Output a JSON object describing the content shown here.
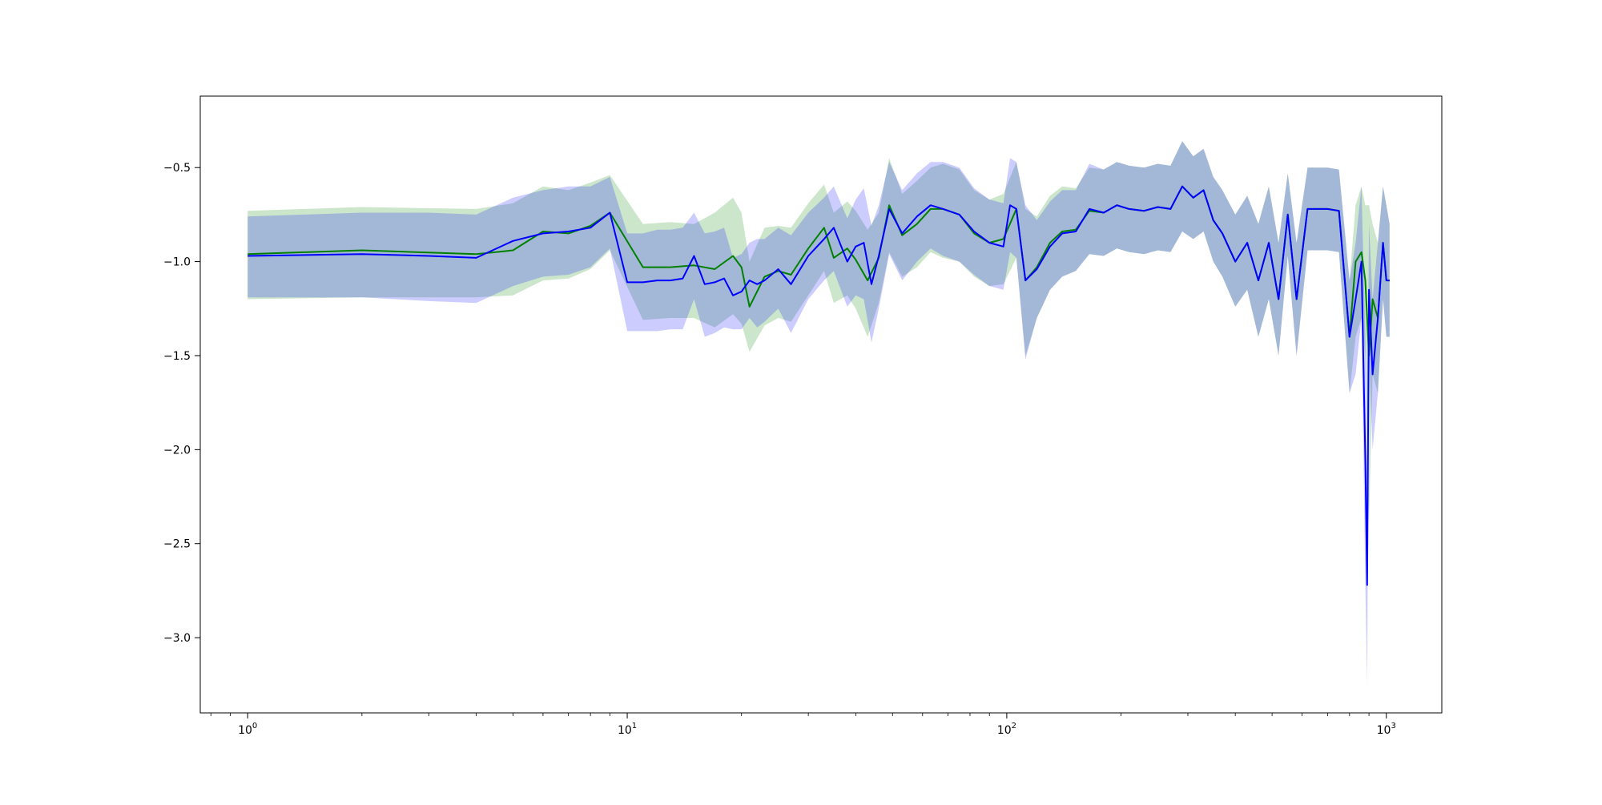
{
  "chart_data": {
    "type": "line",
    "title": "",
    "xlabel": "",
    "ylabel": "",
    "x_scale": "log",
    "xlim": [
      0.75,
      1400
    ],
    "ylim": [
      -3.4,
      -0.12
    ],
    "grid": false,
    "x_major_ticks": [
      {
        "value": 1,
        "base": "10",
        "exp": "0"
      },
      {
        "value": 10,
        "base": "10",
        "exp": "1"
      },
      {
        "value": 100,
        "base": "10",
        "exp": "2"
      },
      {
        "value": 1000,
        "base": "10",
        "exp": "3"
      }
    ],
    "y_ticks": [
      {
        "value": -0.5,
        "label": "−0.5"
      },
      {
        "value": -1.0,
        "label": "−1.0"
      },
      {
        "value": -1.5,
        "label": "−1.5"
      },
      {
        "value": -2.0,
        "label": "−2.0"
      },
      {
        "value": -2.5,
        "label": "−2.5"
      },
      {
        "value": -3.0,
        "label": "−3.0"
      }
    ],
    "series": [
      {
        "color": "#008000",
        "band_color": "#008000",
        "x": [
          1,
          2,
          4,
          5,
          6,
          7,
          8,
          9,
          11,
          13,
          15,
          17,
          19,
          20,
          21,
          23,
          25,
          27,
          30,
          33,
          35,
          38,
          40,
          43,
          46,
          49,
          53,
          58,
          63,
          68,
          75,
          82,
          90,
          98,
          106,
          112,
          120,
          130,
          140,
          152,
          165,
          180,
          195,
          210,
          230,
          250,
          270,
          290,
          310,
          330,
          350,
          370,
          400,
          430,
          460,
          490,
          520,
          550,
          580,
          620,
          660,
          700,
          750,
          800,
          830,
          860,
          880,
          900,
          920,
          950,
          980,
          1000,
          1020
        ],
        "y": [
          -0.96,
          -0.94,
          -0.96,
          -0.94,
          -0.84,
          -0.85,
          -0.81,
          -0.74,
          -1.03,
          -1.03,
          -1.02,
          -1.04,
          -0.97,
          -1.03,
          -1.24,
          -1.08,
          -1.05,
          -1.07,
          -0.93,
          -0.82,
          -0.98,
          -0.93,
          -0.99,
          -1.1,
          -0.98,
          -0.7,
          -0.86,
          -0.8,
          -0.72,
          -0.72,
          -0.75,
          -0.85,
          -0.9,
          -0.88,
          -0.72,
          -1.1,
          -1.03,
          -0.9,
          -0.84,
          -0.83,
          -0.73,
          -0.74,
          -0.7,
          -0.72,
          -0.73,
          -0.71,
          -0.72,
          -0.6,
          -0.66,
          -0.62,
          -0.78,
          -0.85,
          -1.0,
          -0.9,
          -1.1,
          -0.9,
          -1.2,
          -0.75,
          -1.2,
          -0.72,
          -0.72,
          -0.72,
          -0.73,
          -1.4,
          -1.0,
          -0.95,
          -1.1,
          -1.5,
          -1.2,
          -1.3,
          -0.9,
          -1.1,
          -1.1
        ],
        "lower": [
          -1.2,
          -1.19,
          -1.19,
          -1.18,
          -1.1,
          -1.09,
          -1.04,
          -0.94,
          -1.31,
          -1.3,
          -1.3,
          -1.35,
          -1.28,
          -1.33,
          -1.48,
          -1.34,
          -1.3,
          -1.32,
          -1.18,
          -1.05,
          -1.22,
          -1.18,
          -1.25,
          -1.4,
          -1.22,
          -0.95,
          -1.08,
          -1.03,
          -0.95,
          -0.98,
          -1.0,
          -1.08,
          -1.13,
          -1.12,
          -0.98,
          -1.5,
          -1.3,
          -1.15,
          -1.08,
          -1.05,
          -0.96,
          -0.97,
          -0.93,
          -0.95,
          -0.96,
          -0.94,
          -0.95,
          -0.84,
          -0.88,
          -0.84,
          -1.0,
          -1.08,
          -1.24,
          -1.15,
          -1.4,
          -1.2,
          -1.5,
          -0.97,
          -1.5,
          -0.94,
          -0.94,
          -0.94,
          -0.95,
          -1.7,
          -1.4,
          -1.3,
          -1.5,
          -2.4,
          -1.6,
          -1.7,
          -1.2,
          -1.4,
          -1.4
        ],
        "upper": [
          -0.73,
          -0.71,
          -0.72,
          -0.69,
          -0.6,
          -0.62,
          -0.58,
          -0.54,
          -0.8,
          -0.79,
          -0.8,
          -0.74,
          -0.66,
          -0.74,
          -1.0,
          -0.82,
          -0.81,
          -0.82,
          -0.69,
          -0.59,
          -0.74,
          -0.68,
          -0.73,
          -0.83,
          -0.74,
          -0.45,
          -0.64,
          -0.57,
          -0.5,
          -0.48,
          -0.51,
          -0.62,
          -0.67,
          -0.64,
          -0.47,
          -0.72,
          -0.76,
          -0.65,
          -0.6,
          -0.61,
          -0.5,
          -0.51,
          -0.47,
          -0.49,
          -0.5,
          -0.48,
          -0.49,
          -0.36,
          -0.44,
          -0.4,
          -0.55,
          -0.62,
          -0.75,
          -0.65,
          -0.8,
          -0.6,
          -0.9,
          -0.53,
          -0.9,
          -0.5,
          -0.5,
          -0.5,
          -0.51,
          -1.1,
          -0.7,
          -0.6,
          -0.7,
          -0.7,
          -0.8,
          -0.9,
          -0.6,
          -0.7,
          -0.8
        ]
      },
      {
        "color": "#0000ff",
        "band_color": "#0000ff",
        "x": [
          1,
          2,
          3,
          4,
          5,
          6,
          7,
          8,
          9,
          10,
          11,
          12,
          13,
          14,
          15,
          16,
          17,
          18,
          19,
          20,
          21,
          22,
          23,
          25,
          27,
          30,
          33,
          35,
          38,
          40,
          42,
          44,
          46,
          49,
          53,
          58,
          63,
          68,
          75,
          82,
          90,
          98,
          102,
          106,
          112,
          120,
          130,
          140,
          152,
          165,
          180,
          195,
          210,
          230,
          250,
          270,
          290,
          310,
          330,
          350,
          370,
          400,
          430,
          460,
          490,
          520,
          550,
          580,
          620,
          660,
          700,
          750,
          800,
          830,
          860,
          880,
          890,
          900,
          920,
          950,
          980,
          1000,
          1020
        ],
        "y": [
          -0.97,
          -0.96,
          -0.97,
          -0.98,
          -0.89,
          -0.85,
          -0.84,
          -0.82,
          -0.74,
          -1.11,
          -1.11,
          -1.1,
          -1.1,
          -1.09,
          -0.97,
          -1.12,
          -1.11,
          -1.09,
          -1.18,
          -1.16,
          -1.1,
          -1.12,
          -1.1,
          -1.04,
          -1.12,
          -0.97,
          -0.88,
          -0.82,
          -1.0,
          -0.92,
          -0.9,
          -1.12,
          -0.97,
          -0.72,
          -0.85,
          -0.76,
          -0.7,
          -0.72,
          -0.75,
          -0.84,
          -0.9,
          -0.92,
          -0.7,
          -0.72,
          -1.1,
          -1.04,
          -0.92,
          -0.85,
          -0.84,
          -0.72,
          -0.74,
          -0.7,
          -0.72,
          -0.73,
          -0.71,
          -0.72,
          -0.6,
          -0.66,
          -0.62,
          -0.78,
          -0.85,
          -1.0,
          -0.9,
          -1.1,
          -0.9,
          -1.2,
          -0.75,
          -1.2,
          -0.72,
          -0.72,
          -0.72,
          -0.73,
          -1.4,
          -1.2,
          -1.0,
          -2.05,
          -2.72,
          -1.15,
          -1.6,
          -1.3,
          -0.9,
          -1.1,
          -1.1
        ],
        "lower": [
          -1.19,
          -1.19,
          -1.21,
          -1.22,
          -1.13,
          -1.08,
          -1.07,
          -1.03,
          -0.93,
          -1.37,
          -1.37,
          -1.37,
          -1.36,
          -1.36,
          -1.2,
          -1.4,
          -1.38,
          -1.35,
          -1.36,
          -1.36,
          -1.3,
          -1.35,
          -1.32,
          -1.25,
          -1.38,
          -1.2,
          -1.1,
          -1.05,
          -1.24,
          -1.18,
          -1.2,
          -1.43,
          -1.25,
          -0.96,
          -1.1,
          -1.0,
          -0.93,
          -0.97,
          -1.0,
          -1.07,
          -1.13,
          -1.15,
          -0.95,
          -0.98,
          -1.52,
          -1.3,
          -1.15,
          -1.08,
          -1.05,
          -0.96,
          -0.97,
          -0.93,
          -0.95,
          -0.96,
          -0.94,
          -0.95,
          -0.84,
          -0.88,
          -0.84,
          -1.0,
          -1.08,
          -1.24,
          -1.15,
          -1.4,
          -1.2,
          -1.5,
          -0.97,
          -1.5,
          -0.94,
          -0.94,
          -0.94,
          -0.95,
          -1.7,
          -1.6,
          -1.3,
          -2.7,
          -3.25,
          -1.5,
          -2.0,
          -1.7,
          -1.2,
          -1.4,
          -1.4
        ],
        "upper": [
          -0.76,
          -0.74,
          -0.74,
          -0.75,
          -0.66,
          -0.62,
          -0.6,
          -0.6,
          -0.55,
          -0.85,
          -0.85,
          -0.83,
          -0.83,
          -0.82,
          -0.74,
          -0.85,
          -0.84,
          -0.82,
          -0.98,
          -0.96,
          -0.9,
          -0.88,
          -0.88,
          -0.82,
          -0.86,
          -0.74,
          -0.66,
          -0.6,
          -0.77,
          -0.67,
          -0.61,
          -0.81,
          -0.7,
          -0.47,
          -0.62,
          -0.53,
          -0.47,
          -0.47,
          -0.5,
          -0.61,
          -0.67,
          -0.69,
          -0.45,
          -0.47,
          -0.7,
          -0.78,
          -0.68,
          -0.62,
          -0.62,
          -0.48,
          -0.51,
          -0.47,
          -0.49,
          -0.5,
          -0.48,
          -0.49,
          -0.36,
          -0.44,
          -0.4,
          -0.55,
          -0.62,
          -0.75,
          -0.65,
          -0.8,
          -0.6,
          -0.9,
          -0.53,
          -0.9,
          -0.5,
          -0.5,
          -0.5,
          -0.51,
          -1.1,
          -0.9,
          -0.6,
          -1.4,
          -2.2,
          -0.8,
          -1.2,
          -0.9,
          -0.6,
          -0.7,
          -0.8
        ]
      }
    ]
  }
}
